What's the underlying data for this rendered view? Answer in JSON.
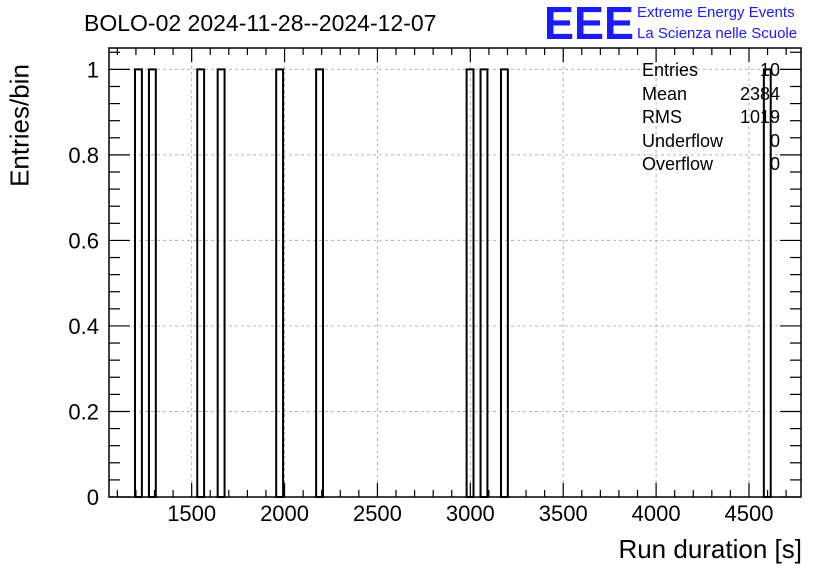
{
  "title": "BOLO-02 2024-11-28--2024-12-07",
  "logo": {
    "text": "EEE",
    "line1": "Extreme Energy Events",
    "line2": "La Scienza nelle Scuole",
    "color": "#1a1aff"
  },
  "stats": [
    {
      "label": "Entries",
      "value": "10"
    },
    {
      "label": "Mean",
      "value": "2384"
    },
    {
      "label": "RMS",
      "value": "1019"
    },
    {
      "label": "Underflow",
      "value": "0"
    },
    {
      "label": "Overflow",
      "value": "0"
    }
  ],
  "chart_data": {
    "type": "bar",
    "title": "BOLO-02 2024-11-28--2024-12-07",
    "xlabel": "Run duration [s]",
    "ylabel": "Entries/bin",
    "xlim": [
      1055,
      4780
    ],
    "ylim": [
      0,
      1.05
    ],
    "bin_width": 37,
    "grid": true,
    "xticks": [
      1500,
      2000,
      2500,
      3000,
      3500,
      4000,
      4500
    ],
    "yticks": [
      0,
      0.2,
      0.4,
      0.6,
      0.8,
      1
    ],
    "ytick_labels": [
      "0",
      "0.2",
      "0.4",
      "0.6",
      "0.8",
      "1"
    ],
    "bins": [
      {
        "x": 1195,
        "count": 1
      },
      {
        "x": 1270,
        "count": 1
      },
      {
        "x": 1530,
        "count": 1
      },
      {
        "x": 1640,
        "count": 1
      },
      {
        "x": 1955,
        "count": 1
      },
      {
        "x": 2170,
        "count": 1
      },
      {
        "x": 2980,
        "count": 1
      },
      {
        "x": 3055,
        "count": 1
      },
      {
        "x": 3165,
        "count": 1
      },
      {
        "x": 4580,
        "count": 1
      }
    ]
  }
}
